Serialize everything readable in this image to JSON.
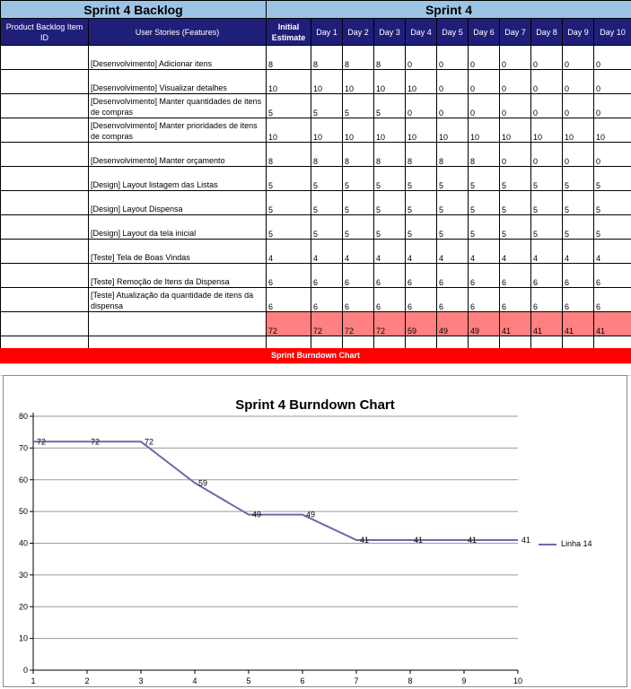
{
  "backlog_title": "Sprint 4 Backlog",
  "sprint_title": "Sprint 4",
  "columns": {
    "product_id": "Product Backlog Item ID",
    "user_stories": "User Stories (Features)",
    "initial_estimate": "Initial Estimate",
    "days": [
      "Day 1",
      "Day 2",
      "Day 3",
      "Day 4",
      "Day 5",
      "Day 6",
      "Day 7",
      "Day 8",
      "Day 9",
      "Day 10"
    ]
  },
  "rows": [
    {
      "story": "[Desenvolvimento] Adicionar itens",
      "estimate": "8",
      "days": [
        "8",
        "8",
        "8",
        "0",
        "0",
        "0",
        "0",
        "0",
        "0",
        "0"
      ]
    },
    {
      "story": "[Desenvolvimento] Visualizar detalhes",
      "estimate": "10",
      "days": [
        "10",
        "10",
        "10",
        "10",
        "0",
        "0",
        "0",
        "0",
        "0",
        "0"
      ]
    },
    {
      "story": "[Desenvolvimento] Manter quantidades de itens de compras",
      "estimate": "5",
      "days": [
        "5",
        "5",
        "5",
        "0",
        "0",
        "0",
        "0",
        "0",
        "0",
        "0"
      ]
    },
    {
      "story": "[Desenvolvimento] Manter prioridades de itens de compras",
      "estimate": "10",
      "days": [
        "10",
        "10",
        "10",
        "10",
        "10",
        "10",
        "10",
        "10",
        "10",
        "10"
      ]
    },
    {
      "story": "[Desenvolvimento] Manter orçamento",
      "estimate": "8",
      "days": [
        "8",
        "8",
        "8",
        "8",
        "8",
        "8",
        "0",
        "0",
        "0",
        "0"
      ]
    },
    {
      "story": "[Design] Layout listagem das Listas",
      "estimate": "5",
      "days": [
        "5",
        "5",
        "5",
        "5",
        "5",
        "5",
        "5",
        "5",
        "5",
        "5"
      ]
    },
    {
      "story": "[Design] Layout Dispensa",
      "estimate": "5",
      "days": [
        "5",
        "5",
        "5",
        "5",
        "5",
        "5",
        "5",
        "5",
        "5",
        "5"
      ]
    },
    {
      "story": "[Design] Layout da tela inicial",
      "estimate": "5",
      "days": [
        "5",
        "5",
        "5",
        "5",
        "5",
        "5",
        "5",
        "5",
        "5",
        "5"
      ]
    },
    {
      "story": "[Teste] Tela de Boas Vindas",
      "estimate": "4",
      "days": [
        "4",
        "4",
        "4",
        "4",
        "4",
        "4",
        "4",
        "4",
        "4",
        "4"
      ]
    },
    {
      "story": "[Teste] Remoção de Itens da Dispensa",
      "estimate": "6",
      "days": [
        "6",
        "6",
        "6",
        "6",
        "6",
        "6",
        "6",
        "6",
        "6",
        "6"
      ]
    },
    {
      "story": "[Teste] Atualização da quantidade de itens da dispensa",
      "estimate": "6",
      "days": [
        "6",
        "6",
        "6",
        "6",
        "6",
        "6",
        "6",
        "6",
        "6",
        "6"
      ]
    }
  ],
  "totals": {
    "estimate": "72",
    "days": [
      "72",
      "72",
      "72",
      "59",
      "49",
      "49",
      "41",
      "41",
      "41",
      "41"
    ]
  },
  "burndown_bar_label": "Sprint Burndown Chart",
  "chart_data": {
    "type": "line",
    "title": "Sprint 4 Burndown Chart",
    "x": [
      1,
      2,
      3,
      4,
      5,
      6,
      7,
      8,
      9,
      10
    ],
    "series": [
      {
        "name": "Linha 14",
        "values": [
          72,
          72,
          72,
          59,
          49,
          49,
          41,
          41,
          41,
          41
        ],
        "color": "#6b6ba8"
      }
    ],
    "ylim": [
      0,
      80
    ],
    "yticks": [
      0,
      10,
      20,
      30,
      40,
      50,
      60,
      70,
      80
    ],
    "xticks": [
      1,
      2,
      3,
      4,
      5,
      6,
      7,
      8,
      9,
      10
    ],
    "grid": true,
    "legend": "right"
  },
  "colors": {
    "header_blue": "#1f1f7a",
    "title_blue": "#9dc3e6",
    "total_red": "#ff8080",
    "bar_red": "#ff0000"
  }
}
